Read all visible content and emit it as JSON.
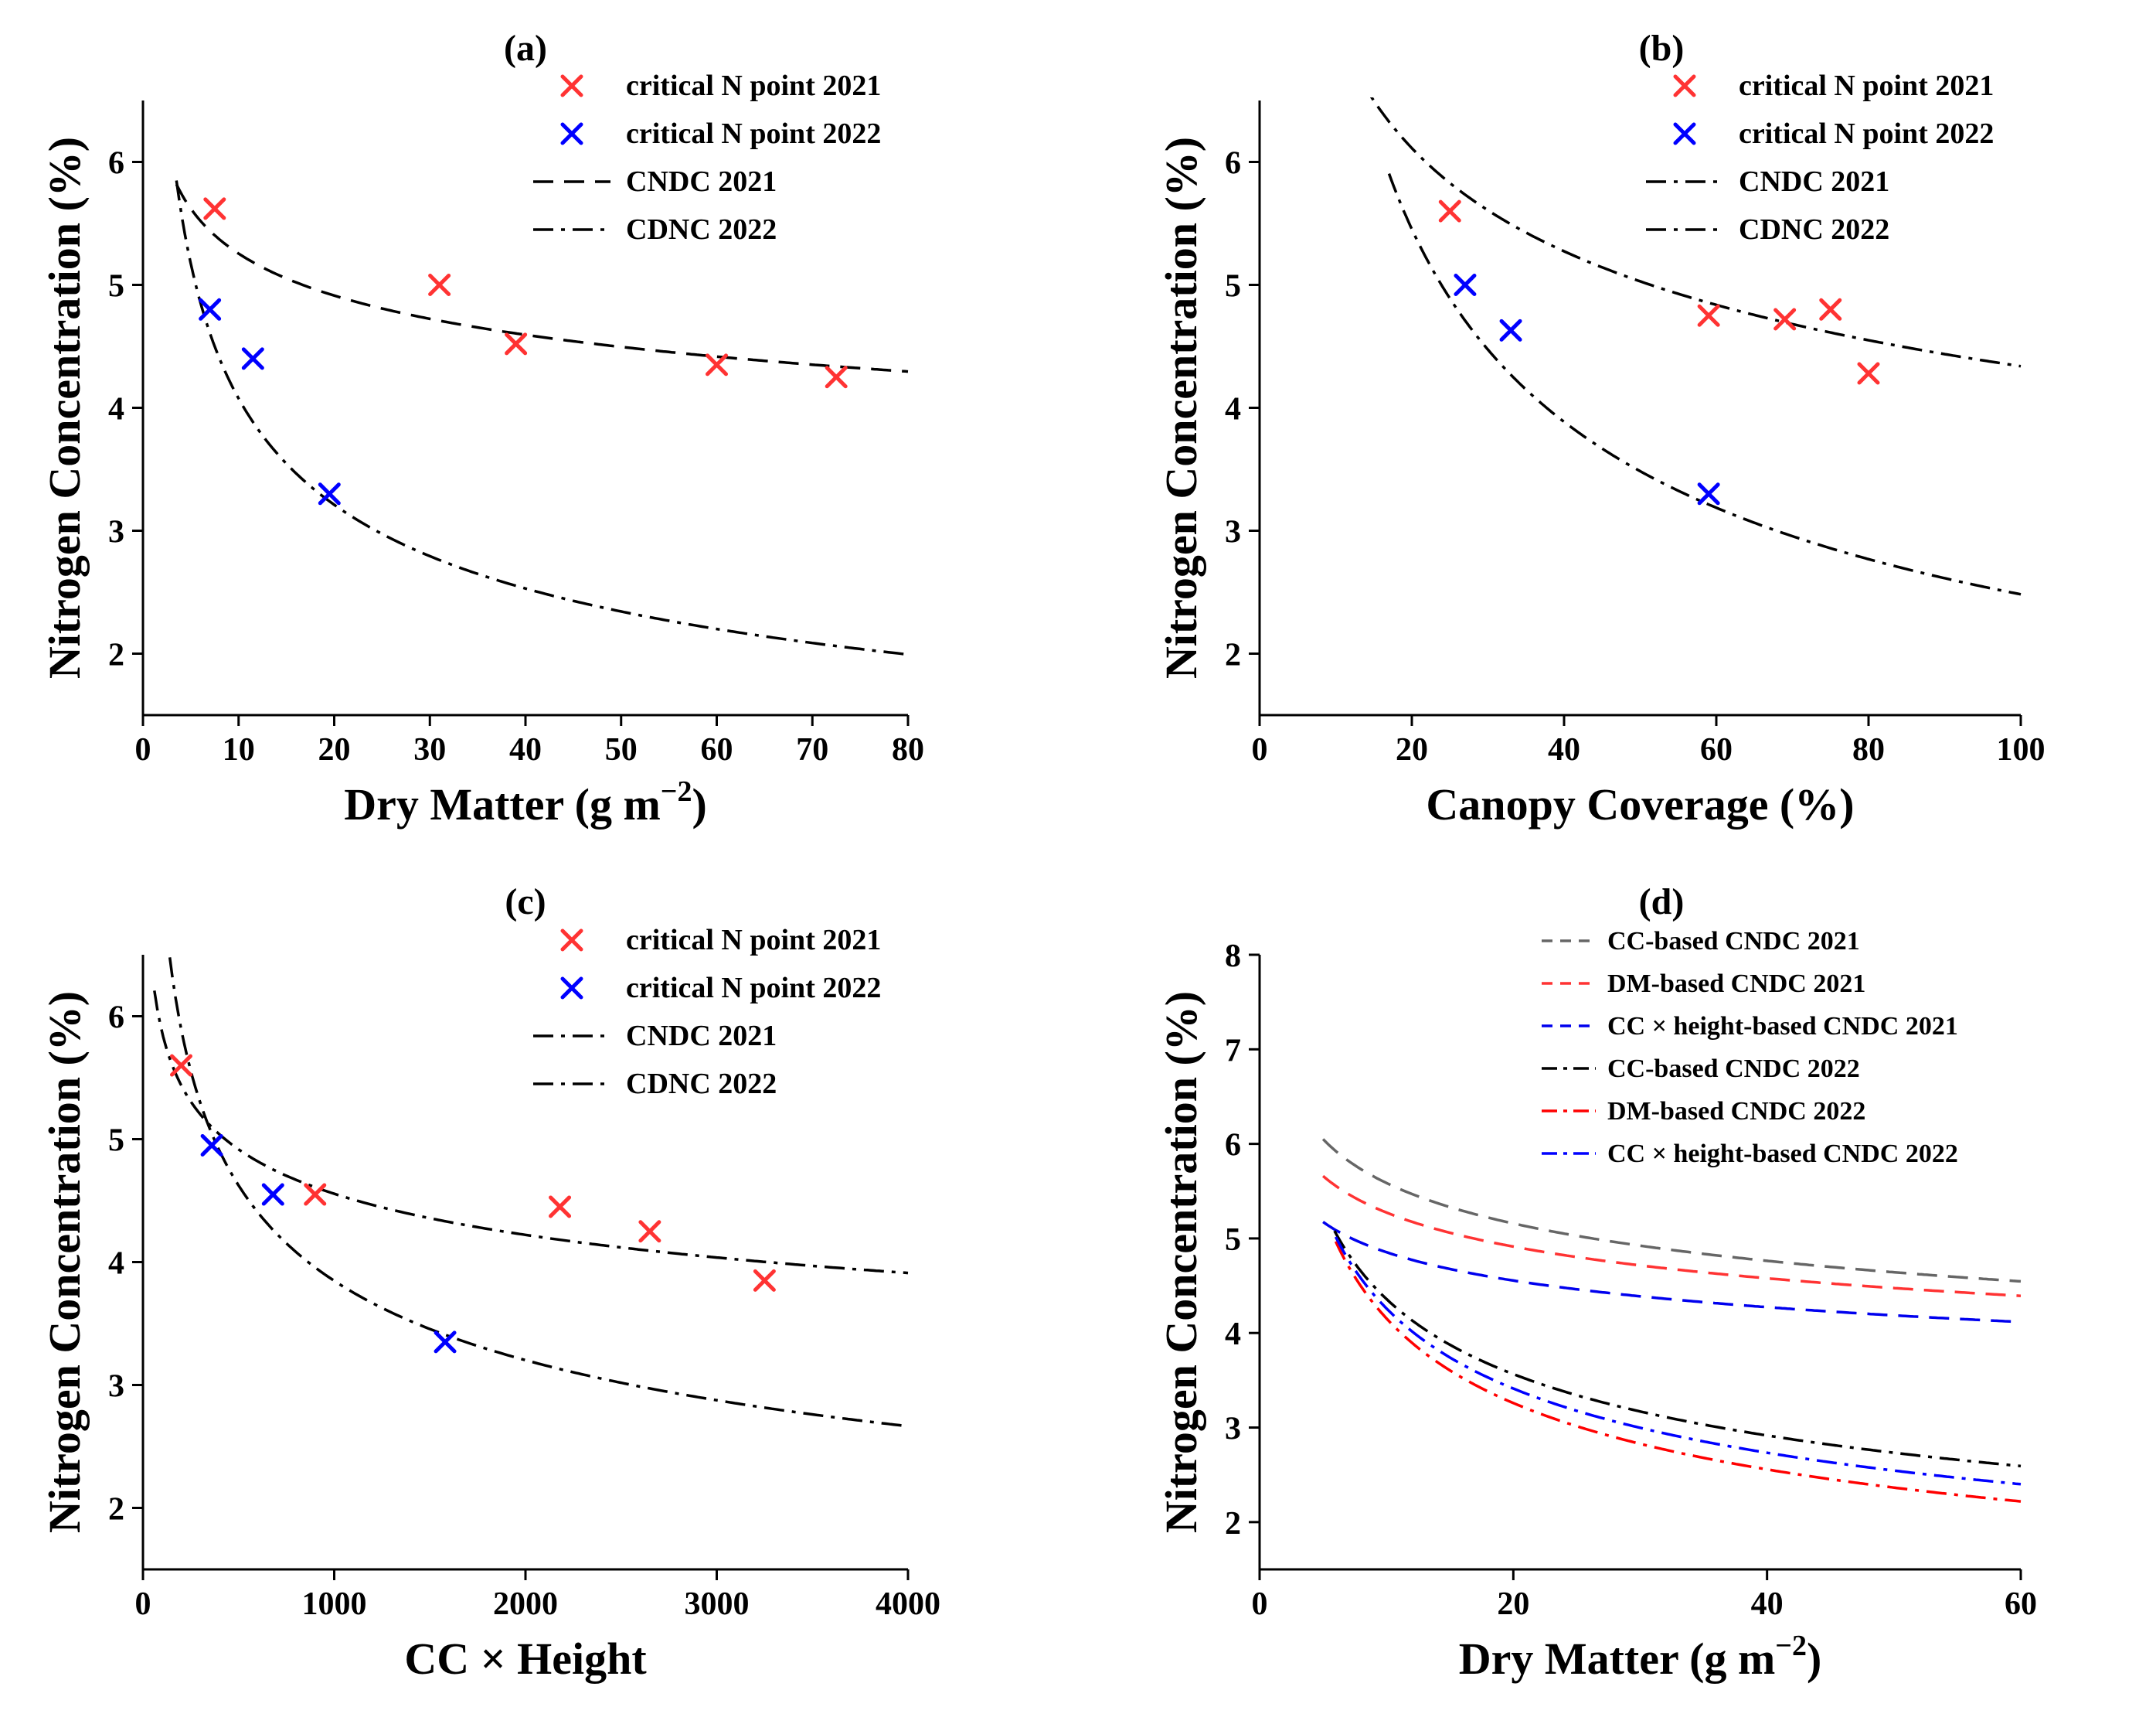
{
  "chart_data": [
    {
      "id": "a",
      "type": "scatter",
      "title": "(a)",
      "xlabel": "Dry Matter (g m",
      "xlabel_sup": "−2",
      "xlabel_end": ")",
      "ylabel": "Nitrogen Concentration (%)",
      "xlim": [
        0,
        80
      ],
      "ylim": [
        1.5,
        6.5
      ],
      "xticks": [
        0,
        10,
        20,
        30,
        40,
        50,
        60,
        70,
        80
      ],
      "yticks": [
        2,
        3,
        4,
        5,
        6
      ],
      "legend": [
        "critical N point 2021",
        "critical N point 2022",
        "CNDC 2021",
        "CDNC 2022"
      ],
      "points_2021": {
        "x": [
          7.5,
          31,
          39,
          60,
          72.5
        ],
        "y": [
          5.62,
          5.0,
          4.52,
          4.35,
          4.25
        ]
      },
      "points_2022": {
        "x": [
          7,
          11.5,
          19.5
        ],
        "y": [
          4.8,
          4.4,
          3.3
        ]
      },
      "curve_2021": {
        "a": 6.57,
        "b": 0.097,
        "xmin": 3.5,
        "xmax": 80,
        "style": "dash"
      },
      "curve_2022": {
        "a": 9.0,
        "b": 0.344,
        "xmin": 3.5,
        "xmax": 80,
        "style": "dashdot"
      }
    },
    {
      "id": "b",
      "type": "scatter",
      "title": "(b)",
      "xlabel": "Canopy Coverage (%)",
      "ylabel": "Nitrogen Concentration (%)",
      "xlim": [
        0,
        100
      ],
      "ylim": [
        1.5,
        6.5
      ],
      "xticks": [
        0,
        20,
        40,
        60,
        80,
        100
      ],
      "yticks": [
        2,
        3,
        4,
        5,
        6
      ],
      "legend": [
        "critical N point 2021",
        "critical N point 2022",
        "CNDC 2021",
        "CDNC 2022"
      ],
      "points_2021": {
        "x": [
          25,
          59,
          69,
          75,
          80
        ],
        "y": [
          5.6,
          4.75,
          4.72,
          4.8,
          4.28
        ]
      },
      "points_2022": {
        "x": [
          27,
          33,
          59
        ],
        "y": [
          5.0,
          4.63,
          3.3
        ]
      },
      "curve_2021": {
        "a": 11.57,
        "b": 0.213,
        "xmin": 10.5,
        "xmax": 100,
        "style": "dashdot"
      },
      "curve_2022": {
        "a": 23.6,
        "b": 0.489,
        "xmin": 17,
        "xmax": 100,
        "style": "dashdot"
      }
    },
    {
      "id": "c",
      "type": "scatter",
      "title": "(c)",
      "xlabel": "CC × Height",
      "ylabel": "Nitrogen Concentration (%)",
      "xlim": [
        0,
        4000
      ],
      "ylim": [
        1.5,
        6.5
      ],
      "xticks": [
        0,
        1000,
        2000,
        3000,
        4000
      ],
      "yticks": [
        2,
        3,
        4,
        5,
        6
      ],
      "legend": [
        "critical N point 2021",
        "critical N point 2022",
        "CNDC 2021",
        "CDNC 2022"
      ],
      "points_2021": {
        "x": [
          200,
          900,
          2180,
          2650,
          3250
        ],
        "y": [
          5.6,
          4.55,
          4.45,
          4.25,
          3.85
        ]
      },
      "points_2022": {
        "x": [
          360,
          680,
          1580
        ],
        "y": [
          4.95,
          4.55,
          3.35
        ]
      },
      "curve_2021": {
        "a": 9.74,
        "b": 0.11,
        "xmin": 60,
        "xmax": 4000,
        "style": "dashdot"
      },
      "curve_2022": {
        "a": 24.0,
        "b": 0.265,
        "xmin": 140,
        "xmax": 4000,
        "style": "dashdot"
      }
    },
    {
      "id": "d",
      "type": "line",
      "title": "(d)",
      "xlabel": "Dry Matter (g m",
      "xlabel_sup": "−2",
      "xlabel_end": ")",
      "ylabel": "Nitrogen Concentration (%)",
      "xlim": [
        0,
        60
      ],
      "ylim": [
        1.5,
        8
      ],
      "xticks": [
        0,
        20,
        40,
        60
      ],
      "yticks": [
        2,
        3,
        4,
        5,
        6,
        7,
        8
      ],
      "series": [
        {
          "name": "CC-based CNDC 2021",
          "color": "#666666",
          "style": "dash",
          "a": 7.28,
          "b": 0.115,
          "xmin": 5,
          "xmax": 60
        },
        {
          "name": "DM-based CNDC 2021",
          "color": "#ff3333",
          "style": "dash",
          "a": 6.67,
          "b": 0.102,
          "xmin": 5,
          "xmax": 60
        },
        {
          "name": "CC × height-based CNDC 2021",
          "color": "#0000ee",
          "style": "dash",
          "a": 6.0,
          "b": 0.092,
          "xmin": 5,
          "xmax": 60
        },
        {
          "name": "CC-based CNDC 2022",
          "color": "#000000",
          "style": "dashdot",
          "a": 8.5,
          "b": 0.29,
          "xmin": 5.9,
          "xmax": 60
        },
        {
          "name": "DM-based CNDC 2022",
          "color": "#ff0000",
          "style": "dashdot",
          "a": 9.3,
          "b": 0.35,
          "xmin": 6.0,
          "xmax": 60
        },
        {
          "name": "CC × height-based CNDC 2022",
          "color": "#0000ff",
          "style": "dashdot",
          "a": 8.9,
          "b": 0.32,
          "xmin": 6.0,
          "xmax": 60
        }
      ]
    }
  ],
  "colors": {
    "red": "#ff3333",
    "blue": "#0000ff",
    "black": "#000000"
  }
}
